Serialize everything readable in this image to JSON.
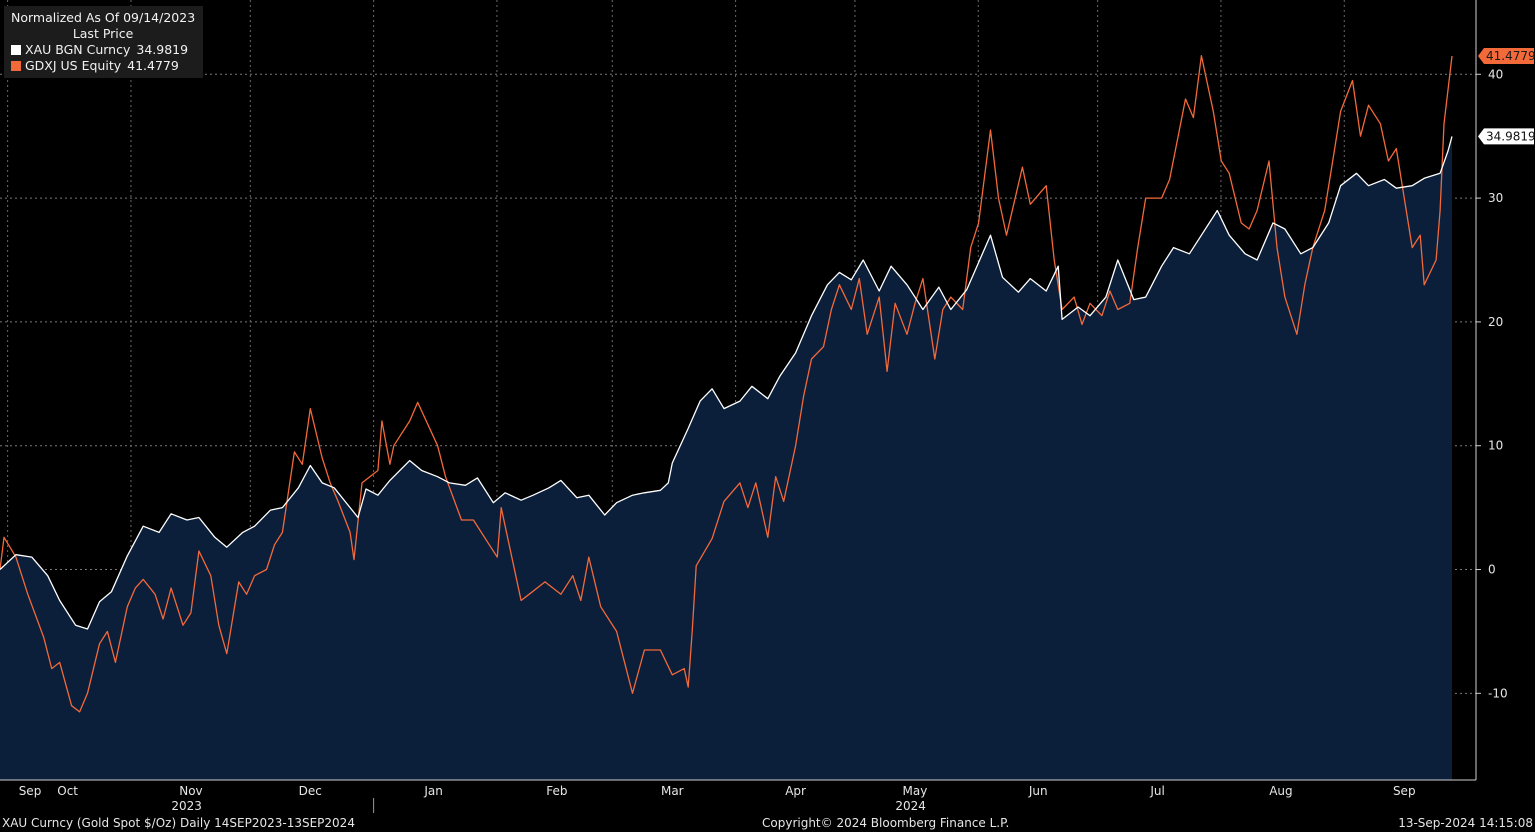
{
  "legend": {
    "header": "Normalized As Of 09/14/2023",
    "subheader": "Last Price",
    "items": [
      {
        "name": "XAU BGN Curncy",
        "value": "34.9819",
        "color": "#ffffff"
      },
      {
        "name": "GDXJ US Equity",
        "value": "41.4779",
        "color": "#f2693a"
      }
    ]
  },
  "footer": {
    "left": "XAU Curncy (Gold Spot  $/Oz)  Daily 14SEP2023-13SEP2024",
    "center": "Copyright© 2024 Bloomberg Finance L.P.",
    "right": "13-Sep-2024 14:15:08"
  },
  "chart_data": {
    "type": "line",
    "ylim": [
      -17,
      46
    ],
    "yticks": [
      -10,
      0,
      10,
      20,
      30,
      40
    ],
    "x_start": "2023-09-14",
    "x_end": "2024-09-13",
    "month_labels": [
      {
        "label": "Sep",
        "date": "2023-09-14"
      },
      {
        "label": "Oct",
        "date": "2023-10-01"
      },
      {
        "label": "Nov",
        "date": "2023-11-01"
      },
      {
        "label": "Dec",
        "date": "2023-12-01"
      },
      {
        "label": "Jan",
        "date": "2024-01-01"
      },
      {
        "label": "Feb",
        "date": "2024-02-01"
      },
      {
        "label": "Mar",
        "date": "2024-03-01"
      },
      {
        "label": "Apr",
        "date": "2024-04-01"
      },
      {
        "label": "May",
        "date": "2024-05-01"
      },
      {
        "label": "Jun",
        "date": "2024-06-01"
      },
      {
        "label": "Jul",
        "date": "2024-07-01"
      },
      {
        "label": "Aug",
        "date": "2024-08-01"
      },
      {
        "label": "Sep",
        "date": "2024-09-01"
      }
    ],
    "year_labels": [
      {
        "label": "2023",
        "date": "2023-11-15"
      },
      {
        "label": "2024",
        "date": "2024-05-15"
      }
    ],
    "last_value_labels": [
      "41.4779",
      "34.9819"
    ],
    "series": [
      {
        "name": "XAU BGN Curncy",
        "color": "#ffffff",
        "area_fill": "#0b1f3a",
        "points": [
          [
            "2023-09-14",
            0
          ],
          [
            "2023-09-18",
            1.2
          ],
          [
            "2023-09-22",
            1.0
          ],
          [
            "2023-09-26",
            -0.5
          ],
          [
            "2023-09-29",
            -2.5
          ],
          [
            "2023-10-03",
            -4.5
          ],
          [
            "2023-10-06",
            -4.8
          ],
          [
            "2023-10-09",
            -2.6
          ],
          [
            "2023-10-12",
            -1.8
          ],
          [
            "2023-10-16",
            1.1
          ],
          [
            "2023-10-20",
            3.5
          ],
          [
            "2023-10-24",
            3.0
          ],
          [
            "2023-10-27",
            4.5
          ],
          [
            "2023-10-31",
            4.0
          ],
          [
            "2023-11-03",
            4.2
          ],
          [
            "2023-11-07",
            2.6
          ],
          [
            "2023-11-10",
            1.8
          ],
          [
            "2023-11-14",
            3.0
          ],
          [
            "2023-11-17",
            3.5
          ],
          [
            "2023-11-21",
            4.8
          ],
          [
            "2023-11-24",
            5.0
          ],
          [
            "2023-11-28",
            6.6
          ],
          [
            "2023-12-01",
            8.4
          ],
          [
            "2023-12-04",
            7.0
          ],
          [
            "2023-12-07",
            6.6
          ],
          [
            "2023-12-11",
            5.0
          ],
          [
            "2023-12-13",
            4.2
          ],
          [
            "2023-12-15",
            6.5
          ],
          [
            "2023-12-18",
            6.0
          ],
          [
            "2023-12-21",
            7.2
          ],
          [
            "2023-12-26",
            8.8
          ],
          [
            "2023-12-29",
            8.0
          ],
          [
            "2024-01-02",
            7.5
          ],
          [
            "2024-01-05",
            7.0
          ],
          [
            "2024-01-09",
            6.8
          ],
          [
            "2024-01-12",
            7.4
          ],
          [
            "2024-01-16",
            5.4
          ],
          [
            "2024-01-19",
            6.2
          ],
          [
            "2024-01-23",
            5.6
          ],
          [
            "2024-01-26",
            6.0
          ],
          [
            "2024-01-30",
            6.6
          ],
          [
            "2024-02-02",
            7.2
          ],
          [
            "2024-02-06",
            5.8
          ],
          [
            "2024-02-09",
            6.0
          ],
          [
            "2024-02-13",
            4.4
          ],
          [
            "2024-02-16",
            5.4
          ],
          [
            "2024-02-20",
            6.0
          ],
          [
            "2024-02-23",
            6.2
          ],
          [
            "2024-02-27",
            6.4
          ],
          [
            "2024-02-29",
            7.0
          ],
          [
            "2024-03-01",
            8.6
          ],
          [
            "2024-03-05",
            11.4
          ],
          [
            "2024-03-08",
            13.6
          ],
          [
            "2024-03-11",
            14.6
          ],
          [
            "2024-03-14",
            13.0
          ],
          [
            "2024-03-18",
            13.6
          ],
          [
            "2024-03-21",
            14.8
          ],
          [
            "2024-03-25",
            13.8
          ],
          [
            "2024-03-28",
            15.6
          ],
          [
            "2024-04-01",
            17.5
          ],
          [
            "2024-04-05",
            20.5
          ],
          [
            "2024-04-09",
            23.0
          ],
          [
            "2024-04-12",
            24.0
          ],
          [
            "2024-04-15",
            23.4
          ],
          [
            "2024-04-18",
            25.0
          ],
          [
            "2024-04-22",
            22.5
          ],
          [
            "2024-04-25",
            24.5
          ],
          [
            "2024-04-29",
            23.0
          ],
          [
            "2024-05-01",
            22.0
          ],
          [
            "2024-05-03",
            21.0
          ],
          [
            "2024-05-07",
            22.8
          ],
          [
            "2024-05-10",
            21.0
          ],
          [
            "2024-05-14",
            22.6
          ],
          [
            "2024-05-17",
            24.8
          ],
          [
            "2024-05-20",
            27.0
          ],
          [
            "2024-05-23",
            23.6
          ],
          [
            "2024-05-27",
            22.4
          ],
          [
            "2024-05-30",
            23.5
          ],
          [
            "2024-06-03",
            22.5
          ],
          [
            "2024-06-06",
            24.5
          ],
          [
            "2024-06-07",
            20.2
          ],
          [
            "2024-06-11",
            21.2
          ],
          [
            "2024-06-14",
            20.5
          ],
          [
            "2024-06-18",
            22.0
          ],
          [
            "2024-06-21",
            25.0
          ],
          [
            "2024-06-25",
            21.8
          ],
          [
            "2024-06-28",
            22.0
          ],
          [
            "2024-07-02",
            24.5
          ],
          [
            "2024-07-05",
            26.0
          ],
          [
            "2024-07-09",
            25.5
          ],
          [
            "2024-07-12",
            27.0
          ],
          [
            "2024-07-16",
            29.0
          ],
          [
            "2024-07-19",
            27.0
          ],
          [
            "2024-07-23",
            25.5
          ],
          [
            "2024-07-26",
            25.0
          ],
          [
            "2024-07-30",
            28.0
          ],
          [
            "2024-08-02",
            27.5
          ],
          [
            "2024-08-06",
            25.5
          ],
          [
            "2024-08-09",
            26.0
          ],
          [
            "2024-08-13",
            28.0
          ],
          [
            "2024-08-16",
            31.0
          ],
          [
            "2024-08-20",
            32.0
          ],
          [
            "2024-08-23",
            31.0
          ],
          [
            "2024-08-27",
            31.5
          ],
          [
            "2024-08-30",
            30.8
          ],
          [
            "2024-09-03",
            31.0
          ],
          [
            "2024-09-06",
            31.6
          ],
          [
            "2024-09-10",
            32.0
          ],
          [
            "2024-09-12",
            33.8
          ],
          [
            "2024-09-13",
            34.9819
          ]
        ]
      },
      {
        "name": "GDXJ US Equity",
        "color": "#f2693a",
        "points": [
          [
            "2023-09-14",
            0
          ],
          [
            "2023-09-15",
            2.6
          ],
          [
            "2023-09-18",
            1.0
          ],
          [
            "2023-09-21",
            -2.0
          ],
          [
            "2023-09-25",
            -5.5
          ],
          [
            "2023-09-27",
            -8.0
          ],
          [
            "2023-09-29",
            -7.5
          ],
          [
            "2023-10-02",
            -11.0
          ],
          [
            "2023-10-04",
            -11.5
          ],
          [
            "2023-10-06",
            -10.0
          ],
          [
            "2023-10-09",
            -6.0
          ],
          [
            "2023-10-11",
            -5.0
          ],
          [
            "2023-10-13",
            -7.5
          ],
          [
            "2023-10-16",
            -3.0
          ],
          [
            "2023-10-18",
            -1.5
          ],
          [
            "2023-10-20",
            -0.8
          ],
          [
            "2023-10-23",
            -2.0
          ],
          [
            "2023-10-25",
            -4.0
          ],
          [
            "2023-10-27",
            -1.5
          ],
          [
            "2023-10-30",
            -4.5
          ],
          [
            "2023-11-01",
            -3.5
          ],
          [
            "2023-11-03",
            1.5
          ],
          [
            "2023-11-06",
            -0.5
          ],
          [
            "2023-11-08",
            -4.5
          ],
          [
            "2023-11-10",
            -6.8
          ],
          [
            "2023-11-13",
            -1.0
          ],
          [
            "2023-11-15",
            -2.0
          ],
          [
            "2023-11-17",
            -0.5
          ],
          [
            "2023-11-20",
            0.0
          ],
          [
            "2023-11-22",
            2.0
          ],
          [
            "2023-11-24",
            3.0
          ],
          [
            "2023-11-27",
            9.5
          ],
          [
            "2023-11-29",
            8.5
          ],
          [
            "2023-12-01",
            13.0
          ],
          [
            "2023-12-04",
            9.0
          ],
          [
            "2023-12-06",
            7.0
          ],
          [
            "2023-12-08",
            5.5
          ],
          [
            "2023-12-11",
            3.0
          ],
          [
            "2023-12-12",
            0.8
          ],
          [
            "2023-12-14",
            7.0
          ],
          [
            "2023-12-18",
            8.0
          ],
          [
            "2023-12-19",
            12.0
          ],
          [
            "2023-12-21",
            8.5
          ],
          [
            "2023-12-22",
            10.0
          ],
          [
            "2023-12-26",
            12.0
          ],
          [
            "2023-12-28",
            13.5
          ],
          [
            "2024-01-02",
            10.0
          ],
          [
            "2024-01-04",
            7.5
          ],
          [
            "2024-01-08",
            4.0
          ],
          [
            "2024-01-11",
            4.0
          ],
          [
            "2024-01-15",
            2.0
          ],
          [
            "2024-01-17",
            1.0
          ],
          [
            "2024-01-18",
            5.0
          ],
          [
            "2024-01-23",
            -2.5
          ],
          [
            "2024-01-25",
            -2.0
          ],
          [
            "2024-01-29",
            -1.0
          ],
          [
            "2024-01-31",
            -1.5
          ],
          [
            "2024-02-02",
            -2.0
          ],
          [
            "2024-02-05",
            -0.5
          ],
          [
            "2024-02-07",
            -2.5
          ],
          [
            "2024-02-09",
            1.0
          ],
          [
            "2024-02-12",
            -3.0
          ],
          [
            "2024-02-14",
            -4.0
          ],
          [
            "2024-02-16",
            -5.0
          ],
          [
            "2024-02-20",
            -10.0
          ],
          [
            "2024-02-23",
            -6.5
          ],
          [
            "2024-02-27",
            -6.5
          ],
          [
            "2024-03-01",
            -8.5
          ],
          [
            "2024-03-04",
            -8.0
          ],
          [
            "2024-03-05",
            -9.5
          ],
          [
            "2024-03-06",
            -5.0
          ],
          [
            "2024-03-07",
            0.3
          ],
          [
            "2024-03-11",
            2.5
          ],
          [
            "2024-03-14",
            5.5
          ],
          [
            "2024-03-18",
            7.0
          ],
          [
            "2024-03-20",
            5.0
          ],
          [
            "2024-03-22",
            7.0
          ],
          [
            "2024-03-25",
            2.6
          ],
          [
            "2024-03-27",
            7.5
          ],
          [
            "2024-03-29",
            5.5
          ],
          [
            "2024-04-01",
            10.0
          ],
          [
            "2024-04-03",
            14.0
          ],
          [
            "2024-04-05",
            17.0
          ],
          [
            "2024-04-08",
            18.0
          ],
          [
            "2024-04-10",
            21.0
          ],
          [
            "2024-04-12",
            23.0
          ],
          [
            "2024-04-15",
            21.0
          ],
          [
            "2024-04-17",
            23.5
          ],
          [
            "2024-04-19",
            19.0
          ],
          [
            "2024-04-22",
            22.0
          ],
          [
            "2024-04-24",
            16.0
          ],
          [
            "2024-04-26",
            21.5
          ],
          [
            "2024-04-29",
            19.0
          ],
          [
            "2024-05-01",
            21.5
          ],
          [
            "2024-05-03",
            23.5
          ],
          [
            "2024-05-06",
            17.0
          ],
          [
            "2024-05-08",
            21.0
          ],
          [
            "2024-05-10",
            22.0
          ],
          [
            "2024-05-13",
            21.0
          ],
          [
            "2024-05-15",
            26.0
          ],
          [
            "2024-05-17",
            28.0
          ],
          [
            "2024-05-20",
            35.5
          ],
          [
            "2024-05-22",
            30.0
          ],
          [
            "2024-05-24",
            27.0
          ],
          [
            "2024-05-28",
            32.5
          ],
          [
            "2024-05-30",
            29.5
          ],
          [
            "2024-06-03",
            31.0
          ],
          [
            "2024-06-05",
            25.0
          ],
          [
            "2024-06-07",
            21.0
          ],
          [
            "2024-06-10",
            22.0
          ],
          [
            "2024-06-12",
            19.8
          ],
          [
            "2024-06-14",
            21.5
          ],
          [
            "2024-06-17",
            20.5
          ],
          [
            "2024-06-19",
            22.5
          ],
          [
            "2024-06-21",
            21.0
          ],
          [
            "2024-06-24",
            21.5
          ],
          [
            "2024-06-26",
            26.0
          ],
          [
            "2024-06-28",
            30.0
          ],
          [
            "2024-07-02",
            30.0
          ],
          [
            "2024-07-04",
            31.5
          ],
          [
            "2024-07-08",
            38.0
          ],
          [
            "2024-07-10",
            36.5
          ],
          [
            "2024-07-12",
            41.5
          ],
          [
            "2024-07-15",
            37.0
          ],
          [
            "2024-07-17",
            33.0
          ],
          [
            "2024-07-19",
            32.0
          ],
          [
            "2024-07-22",
            28.0
          ],
          [
            "2024-07-24",
            27.5
          ],
          [
            "2024-07-26",
            29.0
          ],
          [
            "2024-07-29",
            33.0
          ],
          [
            "2024-07-31",
            26.0
          ],
          [
            "2024-08-02",
            22.0
          ],
          [
            "2024-08-05",
            19.0
          ],
          [
            "2024-08-07",
            23.0
          ],
          [
            "2024-08-09",
            26.0
          ],
          [
            "2024-08-12",
            29.0
          ],
          [
            "2024-08-14",
            33.0
          ],
          [
            "2024-08-16",
            37.0
          ],
          [
            "2024-08-19",
            39.5
          ],
          [
            "2024-08-21",
            35.0
          ],
          [
            "2024-08-23",
            37.5
          ],
          [
            "2024-08-26",
            36.0
          ],
          [
            "2024-08-28",
            33.0
          ],
          [
            "2024-08-30",
            34.0
          ],
          [
            "2024-09-03",
            26.0
          ],
          [
            "2024-09-05",
            27.0
          ],
          [
            "2024-09-06",
            23.0
          ],
          [
            "2024-09-09",
            25.0
          ],
          [
            "2024-09-10",
            29.0
          ],
          [
            "2024-09-11",
            36.0
          ],
          [
            "2024-09-13",
            41.4779
          ]
        ]
      }
    ]
  }
}
